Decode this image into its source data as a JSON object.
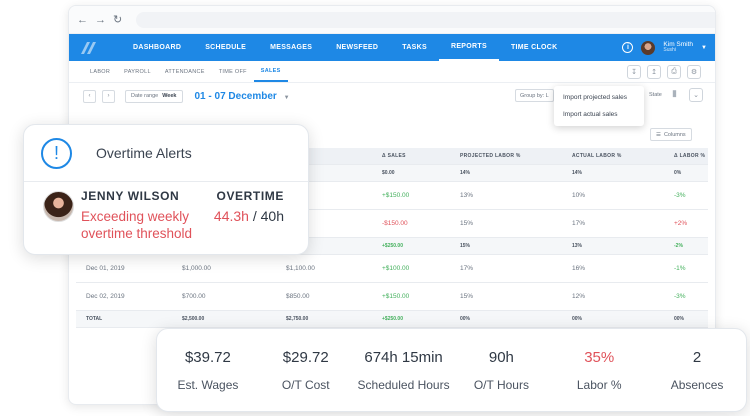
{
  "topnav": {
    "links": [
      "DASHBOARD",
      "SCHEDULE",
      "MESSAGES",
      "NEWSFEED",
      "TASKS",
      "REPORTS",
      "TIME CLOCK"
    ],
    "active": "REPORTS",
    "user_name": "Kim Smith",
    "user_company": "Sushi"
  },
  "subnav": {
    "tabs": [
      "LABOR",
      "PAYROLL",
      "ATTENDANCE",
      "TIME OFF",
      "SALES"
    ],
    "active": "SALES"
  },
  "toolbar": {
    "date_range_label": "Date range",
    "date_range_value": "Week",
    "date_text": "01 - 07 December",
    "group_by_label": "Group by: L",
    "state_label": "State",
    "columns_label": "Columns"
  },
  "export_menu": {
    "items": [
      "Import projected sales",
      "Import actual sales"
    ]
  },
  "table": {
    "headers": [
      "",
      "",
      "SALES",
      "Δ SALES",
      "PROJECTED LABOR %",
      "ACTUAL LABOR %",
      "Δ LABOR %"
    ],
    "rows": [
      {
        "type": "sub",
        "cells": [
          "",
          "",
          "",
          "$0.00",
          "14%",
          "14%",
          "0%"
        ]
      },
      {
        "type": "body",
        "cells": [
          "",
          "",
          "",
          "+$150.00",
          "13%",
          "10%",
          "-3%"
        ]
      },
      {
        "type": "body",
        "cells": [
          "",
          "",
          "",
          "-$150.00",
          "15%",
          "17%",
          "+2%"
        ]
      },
      {
        "type": "sub",
        "cells": [
          "",
          "",
          "",
          "+$250.00",
          "15%",
          "13%",
          "-2%"
        ]
      },
      {
        "type": "body",
        "cells": [
          "Dec 01, 2019",
          "$1,000.00",
          "$1,100.00",
          "+$100.00",
          "17%",
          "16%",
          "-1%"
        ]
      },
      {
        "type": "body",
        "cells": [
          "Dec 02, 2019",
          "$700.00",
          "$850.00",
          "+$150.00",
          "15%",
          "12%",
          "-3%"
        ]
      },
      {
        "type": "sub",
        "cells": [
          "TOTAL",
          "$2,500.00",
          "$2,750.00",
          "+$250.00",
          "00%",
          "00%",
          "00%"
        ]
      }
    ]
  },
  "alert": {
    "title": "Overtime Alerts",
    "employee": "JENNY WILSON",
    "message": "Exceeding weekly overtime threshold",
    "overtime_label": "OVERTIME",
    "hours_value": "44.3h",
    "hours_limit": " / 40h"
  },
  "stats": [
    {
      "value": "$39.72",
      "label": "Est. Wages"
    },
    {
      "value": "$29.72",
      "label": "O/T Cost"
    },
    {
      "value": "674h 15min",
      "label": "Scheduled Hours"
    },
    {
      "value": "90h",
      "label": "O/T Hours"
    },
    {
      "value": "35%",
      "label": "Labor %"
    },
    {
      "value": "2",
      "label": "Absences"
    }
  ],
  "colors": {
    "brand": "#1e88e5",
    "negative": "#e0525a",
    "positive": "#43b05c"
  }
}
